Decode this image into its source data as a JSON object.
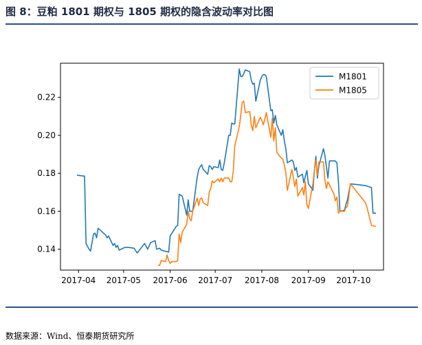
{
  "figure": {
    "title": "图 8：豆粕 1801 期权与 1805 期权的隐含波动率对比图",
    "source": "数据来源：Wind、恒泰期货研究所"
  },
  "colors": {
    "rule": "#2a4f8f",
    "series1": "#1f77b4",
    "series2": "#ff7f0e"
  },
  "chart_data": {
    "type": "line",
    "title": "",
    "xlabel": "",
    "ylabel": "",
    "x_ticks": [
      "2017-04",
      "2017-05",
      "2017-06",
      "2017-07",
      "2017-08",
      "2017-09",
      "2017-10"
    ],
    "y_ticks": [
      "0.14",
      "0.16",
      "0.18",
      "0.20",
      "0.22"
    ],
    "ylim": [
      0.129,
      0.238
    ],
    "xlim": [
      "2017-03-20",
      "2017-10-21"
    ],
    "grid": false,
    "legend_position": "top-right",
    "series": [
      {
        "name": "M1801",
        "points": [
          [
            "2017-03-31",
            0.179
          ],
          [
            "2017-04-05",
            0.1785
          ],
          [
            "2017-04-06",
            0.143
          ],
          [
            "2017-04-08",
            0.14
          ],
          [
            "2017-04-09",
            0.139
          ],
          [
            "2017-04-11",
            0.148
          ],
          [
            "2017-04-12",
            0.1485
          ],
          [
            "2017-04-13",
            0.146
          ],
          [
            "2017-04-14",
            0.151
          ],
          [
            "2017-04-17",
            0.149
          ],
          [
            "2017-04-19",
            0.1475
          ],
          [
            "2017-04-20",
            0.146
          ],
          [
            "2017-04-21",
            0.147
          ],
          [
            "2017-04-24",
            0.142
          ],
          [
            "2017-04-25",
            0.143
          ],
          [
            "2017-04-26",
            0.141
          ],
          [
            "2017-04-27",
            0.142
          ],
          [
            "2017-04-28",
            0.1395
          ],
          [
            "2017-05-02",
            0.141
          ],
          [
            "2017-05-04",
            0.141
          ],
          [
            "2017-05-08",
            0.1405
          ],
          [
            "2017-05-10",
            0.138
          ],
          [
            "2017-05-12",
            0.14
          ],
          [
            "2017-05-15",
            0.143
          ],
          [
            "2017-05-17",
            0.14
          ],
          [
            "2017-05-19",
            0.1435
          ],
          [
            "2017-05-22",
            0.1445
          ],
          [
            "2017-05-23",
            0.14
          ],
          [
            "2017-05-25",
            0.1405
          ],
          [
            "2017-05-26",
            0.1395
          ],
          [
            "2017-05-31",
            0.1385
          ],
          [
            "2017-06-01",
            0.147
          ],
          [
            "2017-06-05",
            0.152
          ],
          [
            "2017-06-06",
            0.1525
          ],
          [
            "2017-06-07",
            0.169
          ],
          [
            "2017-06-08",
            0.1685
          ],
          [
            "2017-06-09",
            0.168
          ],
          [
            "2017-06-12",
            0.158
          ],
          [
            "2017-06-13",
            0.166
          ],
          [
            "2017-06-14",
            0.16
          ],
          [
            "2017-06-16",
            0.16
          ],
          [
            "2017-06-19",
            0.178
          ],
          [
            "2017-06-20",
            0.182
          ],
          [
            "2017-06-21",
            0.1835
          ],
          [
            "2017-06-22",
            0.1845
          ],
          [
            "2017-06-23",
            0.182
          ],
          [
            "2017-06-26",
            0.1795
          ],
          [
            "2017-06-27",
            0.184
          ],
          [
            "2017-06-28",
            0.1835
          ],
          [
            "2017-06-29",
            0.182
          ],
          [
            "2017-06-30",
            0.1835
          ],
          [
            "2017-07-03",
            0.183
          ],
          [
            "2017-07-04",
            0.187
          ],
          [
            "2017-07-05",
            0.182
          ],
          [
            "2017-07-06",
            0.1815
          ],
          [
            "2017-07-07",
            0.1855
          ],
          [
            "2017-07-10",
            0.2
          ],
          [
            "2017-07-11",
            0.2
          ],
          [
            "2017-07-12",
            0.2065
          ],
          [
            "2017-07-13",
            0.206
          ],
          [
            "2017-07-14",
            0.206
          ],
          [
            "2017-07-17",
            0.235
          ],
          [
            "2017-07-18",
            0.231
          ],
          [
            "2017-07-19",
            0.231
          ],
          [
            "2017-07-20",
            0.2325
          ],
          [
            "2017-07-21",
            0.2345
          ],
          [
            "2017-07-24",
            0.2335
          ],
          [
            "2017-07-25",
            0.229
          ],
          [
            "2017-07-26",
            0.227
          ],
          [
            "2017-07-27",
            0.2275
          ],
          [
            "2017-07-28",
            0.218
          ],
          [
            "2017-07-31",
            0.229
          ],
          [
            "2017-08-01",
            0.231
          ],
          [
            "2017-08-02",
            0.232
          ],
          [
            "2017-08-03",
            0.232
          ],
          [
            "2017-08-04",
            0.231
          ],
          [
            "2017-08-07",
            0.213
          ],
          [
            "2017-08-08",
            0.2135
          ],
          [
            "2017-08-09",
            0.2065
          ],
          [
            "2017-08-10",
            0.2105
          ],
          [
            "2017-08-11",
            0.2055
          ],
          [
            "2017-08-14",
            0.2
          ],
          [
            "2017-08-15",
            0.203
          ],
          [
            "2017-08-16",
            0.197
          ],
          [
            "2017-08-17",
            0.193
          ],
          [
            "2017-08-18",
            0.1855
          ],
          [
            "2017-08-21",
            0.187
          ],
          [
            "2017-08-22",
            0.186
          ],
          [
            "2017-08-23",
            0.1815
          ],
          [
            "2017-08-24",
            0.183
          ],
          [
            "2017-08-25",
            0.178
          ],
          [
            "2017-08-28",
            0.1795
          ],
          [
            "2017-08-29",
            0.175
          ],
          [
            "2017-08-30",
            0.1785
          ],
          [
            "2017-08-31",
            0.1815
          ],
          [
            "2017-09-01",
            0.1745
          ],
          [
            "2017-09-04",
            0.171
          ],
          [
            "2017-09-05",
            0.1815
          ],
          [
            "2017-09-06",
            0.189
          ],
          [
            "2017-09-07",
            0.1775
          ],
          [
            "2017-09-08",
            0.184
          ],
          [
            "2017-09-11",
            0.193
          ],
          [
            "2017-09-12",
            0.1895
          ],
          [
            "2017-09-13",
            0.1835
          ],
          [
            "2017-09-14",
            0.1775
          ],
          [
            "2017-09-15",
            0.1865
          ],
          [
            "2017-09-18",
            0.1865
          ],
          [
            "2017-09-19",
            0.1865
          ],
          [
            "2017-09-20",
            0.1855
          ],
          [
            "2017-09-21",
            0.1755
          ],
          [
            "2017-09-22",
            0.16
          ],
          [
            "2017-09-25",
            0.1605
          ],
          [
            "2017-09-26",
            0.1635
          ],
          [
            "2017-09-27",
            0.166
          ],
          [
            "2017-09-29",
            0.1745
          ],
          [
            "2017-10-09",
            0.1735
          ],
          [
            "2017-10-13",
            0.1725
          ],
          [
            "2017-10-14",
            0.159
          ],
          [
            "2017-10-16",
            0.159
          ]
        ]
      },
      {
        "name": "M1805",
        "points": [
          [
            "2017-05-24",
            0.1315
          ],
          [
            "2017-05-25",
            0.1315
          ],
          [
            "2017-05-26",
            0.134
          ],
          [
            "2017-05-29",
            0.1335
          ],
          [
            "2017-05-30",
            0.137
          ],
          [
            "2017-05-31",
            0.134
          ],
          [
            "2017-06-01",
            0.1325
          ],
          [
            "2017-06-02",
            0.1335
          ],
          [
            "2017-06-05",
            0.1335
          ],
          [
            "2017-06-06",
            0.134
          ],
          [
            "2017-06-07",
            0.148
          ],
          [
            "2017-06-08",
            0.1435
          ],
          [
            "2017-06-09",
            0.149
          ],
          [
            "2017-06-12",
            0.153
          ],
          [
            "2017-06-13",
            0.16
          ],
          [
            "2017-06-14",
            0.156
          ],
          [
            "2017-06-15",
            0.155
          ],
          [
            "2017-06-16",
            0.16
          ],
          [
            "2017-06-19",
            0.167
          ],
          [
            "2017-06-20",
            0.163
          ],
          [
            "2017-06-21",
            0.1665
          ],
          [
            "2017-06-22",
            0.167
          ],
          [
            "2017-06-23",
            0.1645
          ],
          [
            "2017-06-26",
            0.163
          ],
          [
            "2017-06-27",
            0.17
          ],
          [
            "2017-06-28",
            0.172
          ],
          [
            "2017-06-29",
            0.176
          ],
          [
            "2017-06-30",
            0.175
          ],
          [
            "2017-07-03",
            0.177
          ],
          [
            "2017-07-04",
            0.1755
          ],
          [
            "2017-07-05",
            0.1775
          ],
          [
            "2017-07-06",
            0.1755
          ],
          [
            "2017-07-07",
            0.1775
          ],
          [
            "2017-07-10",
            0.1775
          ],
          [
            "2017-07-11",
            0.1755
          ],
          [
            "2017-07-12",
            0.1755
          ],
          [
            "2017-07-13",
            0.181
          ],
          [
            "2017-07-14",
            0.1945
          ],
          [
            "2017-07-17",
            0.2045
          ],
          [
            "2017-07-18",
            0.2105
          ],
          [
            "2017-07-19",
            0.2175
          ],
          [
            "2017-07-20",
            0.218
          ],
          [
            "2017-07-21",
            0.212
          ],
          [
            "2017-07-24",
            0.2125
          ],
          [
            "2017-07-25",
            0.2055
          ],
          [
            "2017-07-26",
            0.2025
          ],
          [
            "2017-07-27",
            0.21
          ],
          [
            "2017-07-28",
            0.204
          ],
          [
            "2017-07-31",
            0.2095
          ],
          [
            "2017-08-01",
            0.208
          ],
          [
            "2017-08-02",
            0.2055
          ],
          [
            "2017-08-03",
            0.2085
          ],
          [
            "2017-08-04",
            0.212
          ],
          [
            "2017-08-07",
            0.199
          ],
          [
            "2017-08-08",
            0.209
          ],
          [
            "2017-08-09",
            0.197
          ],
          [
            "2017-08-10",
            0.204
          ],
          [
            "2017-08-11",
            0.191
          ],
          [
            "2017-08-14",
            0.188
          ],
          [
            "2017-08-15",
            0.1875
          ],
          [
            "2017-08-16",
            0.1845
          ],
          [
            "2017-08-17",
            0.1805
          ],
          [
            "2017-08-18",
            0.171
          ],
          [
            "2017-08-21",
            0.182
          ],
          [
            "2017-08-22",
            0.178
          ],
          [
            "2017-08-23",
            0.173
          ],
          [
            "2017-08-24",
            0.177
          ],
          [
            "2017-08-25",
            0.168
          ],
          [
            "2017-08-28",
            0.1725
          ],
          [
            "2017-08-29",
            0.1685
          ],
          [
            "2017-08-30",
            0.1755
          ],
          [
            "2017-08-31",
            0.1635
          ],
          [
            "2017-09-01",
            0.1615
          ],
          [
            "2017-09-04",
            0.1745
          ],
          [
            "2017-09-05",
            0.1815
          ],
          [
            "2017-09-06",
            0.187
          ],
          [
            "2017-09-07",
            0.179
          ],
          [
            "2017-09-08",
            0.186
          ],
          [
            "2017-09-11",
            0.186
          ],
          [
            "2017-09-12",
            0.1765
          ],
          [
            "2017-09-13",
            0.172
          ],
          [
            "2017-09-14",
            0.1755
          ],
          [
            "2017-09-15",
            0.174
          ],
          [
            "2017-09-18",
            0.169
          ],
          [
            "2017-09-19",
            0.1655
          ],
          [
            "2017-09-20",
            0.1675
          ],
          [
            "2017-09-21",
            0.159
          ],
          [
            "2017-09-22",
            0.16
          ],
          [
            "2017-09-25",
            0.16
          ],
          [
            "2017-09-26",
            0.162
          ],
          [
            "2017-09-27",
            0.1625
          ],
          [
            "2017-09-29",
            0.1745
          ],
          [
            "2017-10-09",
            0.1645
          ],
          [
            "2017-10-10",
            0.162
          ],
          [
            "2017-10-13",
            0.1525
          ],
          [
            "2017-10-16",
            0.152
          ]
        ]
      }
    ]
  }
}
